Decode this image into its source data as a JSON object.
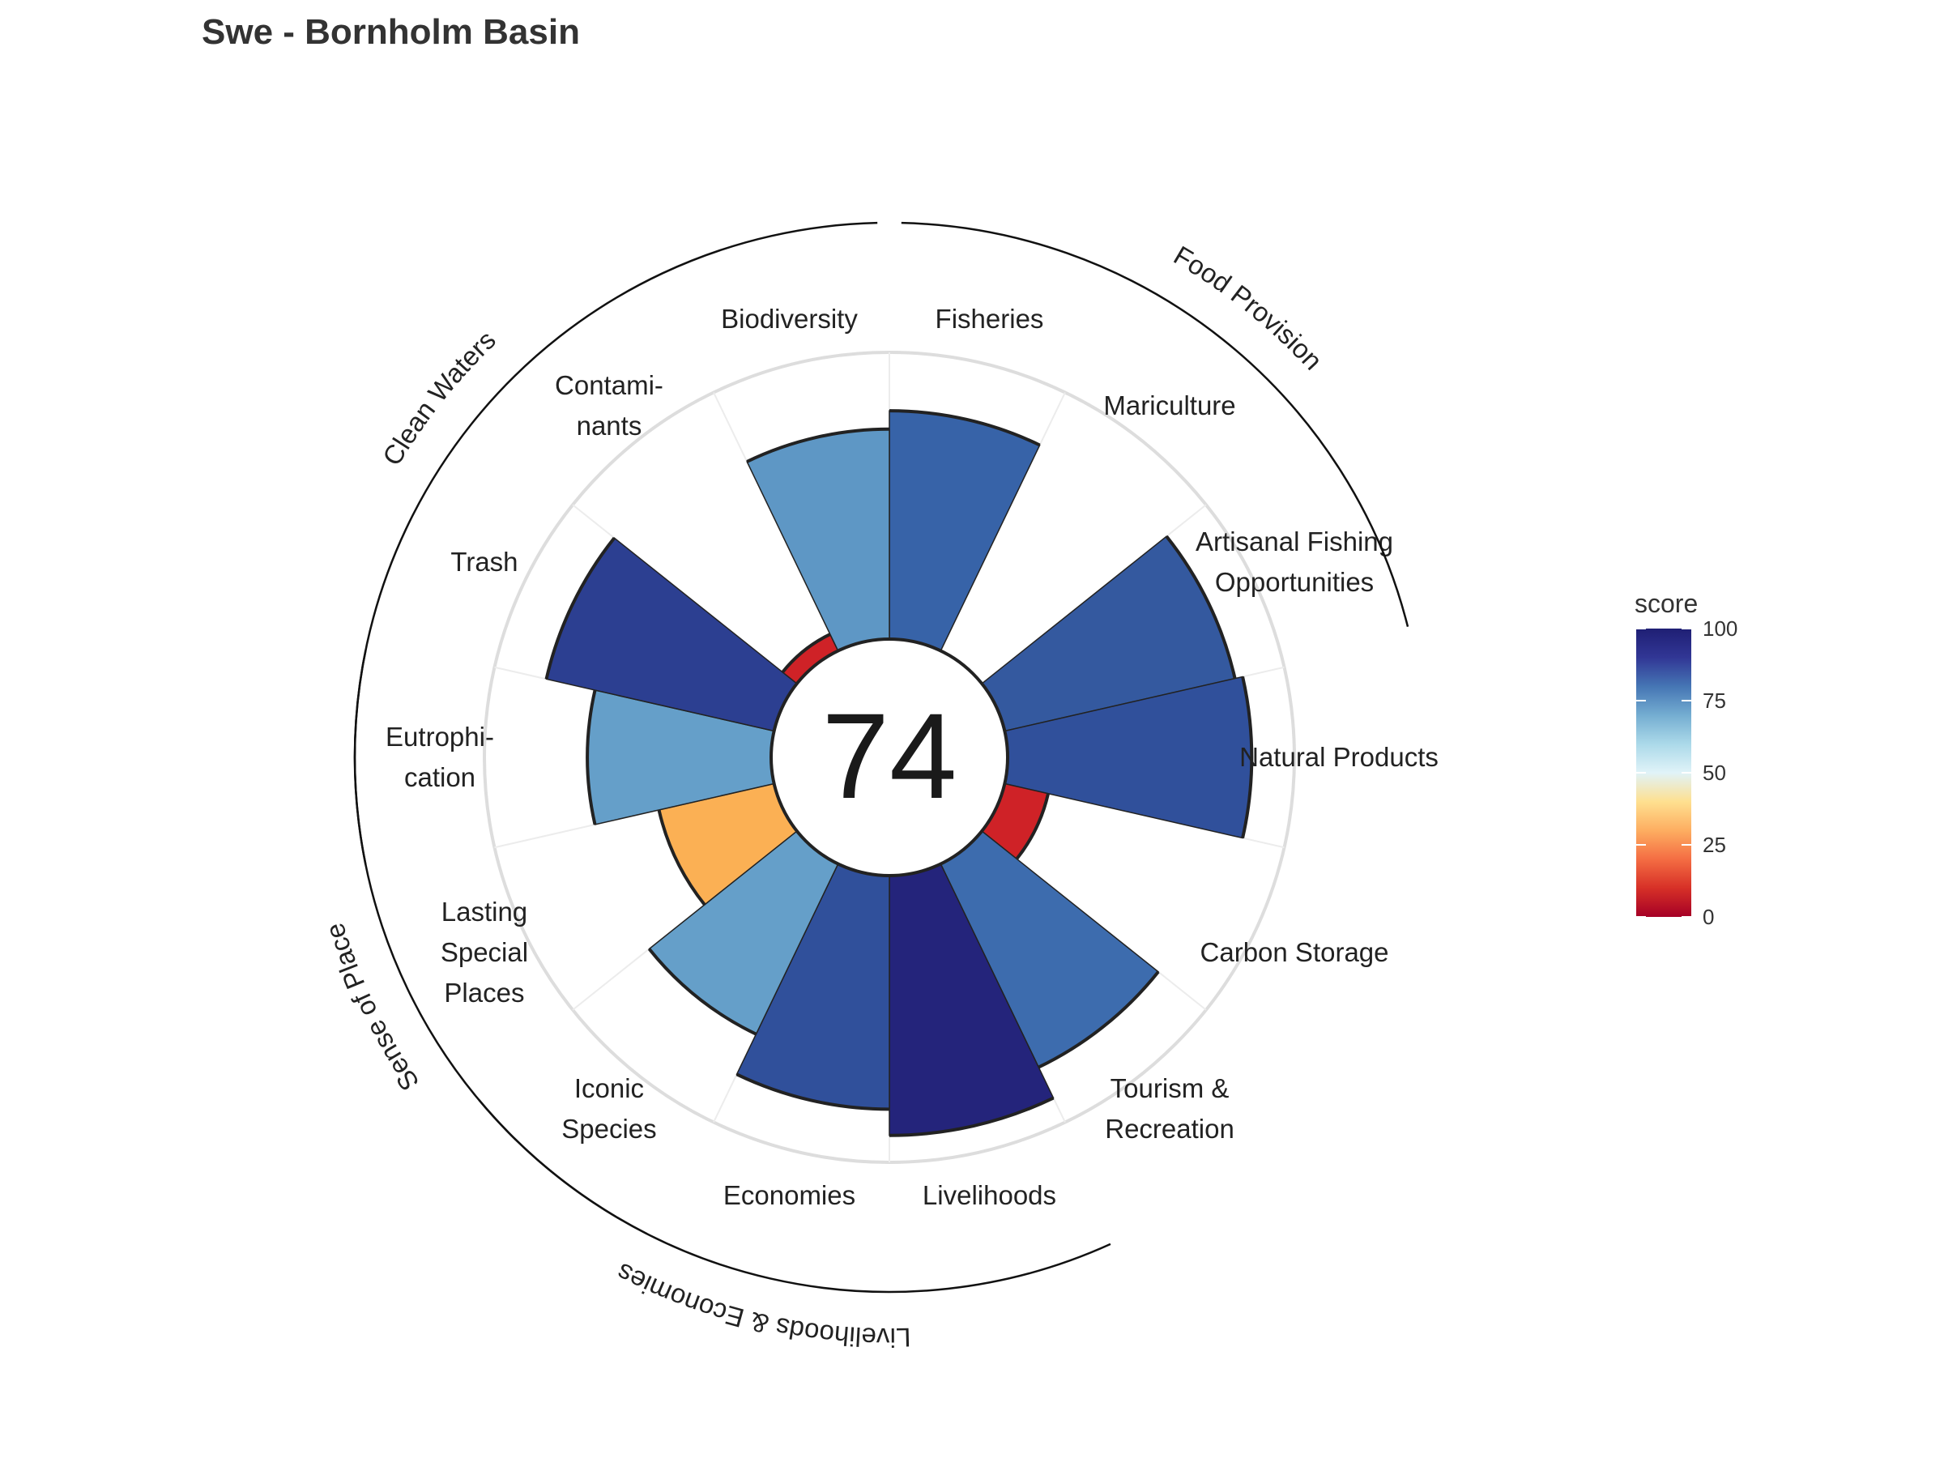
{
  "chart_data": {
    "type": "polar-bar",
    "title": "Swe - Bornholm Basin",
    "overall_score": "74",
    "rlim": [
      0,
      100
    ],
    "goals": [
      {
        "name": "Fisheries",
        "label": [
          "Fisheries"
        ],
        "score": 87,
        "color": "#3763a8"
      },
      {
        "name": "Mariculture",
        "label": [
          "Mariculture"
        ],
        "score": null,
        "color": null
      },
      {
        "name": "Artisanal Fishing Opportunities",
        "label": [
          "Artisanal Fishing",
          "Opportunities"
        ],
        "score": 90,
        "color": "#34599f"
      },
      {
        "name": "Natural Products",
        "label": [
          "Natural Products"
        ],
        "score": 93,
        "color": "#30509b"
      },
      {
        "name": "Carbon Storage",
        "label": [
          "Carbon Storage"
        ],
        "score": 17,
        "color": "#cf2227"
      },
      {
        "name": "Tourism & Recreation",
        "label": [
          "Tourism &",
          "Recreation"
        ],
        "score": 86,
        "color": "#3d6cae"
      },
      {
        "name": "Livelihoods",
        "label": [
          "Livelihoods"
        ],
        "score": 99,
        "color": "#24247b"
      },
      {
        "name": "Economies",
        "label": [
          "Economies"
        ],
        "score": 89,
        "color": "#30509b"
      },
      {
        "name": "Iconic Species",
        "label": [
          "Iconic",
          "Species"
        ],
        "score": 72,
        "color": "#659fc9"
      },
      {
        "name": "Lasting Special Places",
        "label": [
          "Lasting",
          "Special",
          "Places"
        ],
        "score": 45,
        "color": "#fbb054"
      },
      {
        "name": "Eutrophication",
        "label": [
          "Eutrophi-",
          "cation"
        ],
        "score": 70,
        "color": "#659fc9"
      },
      {
        "name": "Trash",
        "label": [
          "Trash"
        ],
        "score": 89,
        "color": "#2c3f91"
      },
      {
        "name": "Contaminants",
        "label": [
          "Contami-",
          "nants"
        ],
        "score": 7,
        "color": "#cf2227"
      },
      {
        "name": "Biodiversity",
        "label": [
          "Biodiversity"
        ],
        "score": 80,
        "color": "#5e97c5"
      }
    ],
    "groups": [
      {
        "name": "Food Provision",
        "from": 0,
        "to": 2
      },
      {
        "name": "Livelihoods & Economies",
        "from": 6,
        "to": 8
      },
      {
        "name": "Sense of Place",
        "from": 8,
        "to": 10
      },
      {
        "name": "Clean Waters",
        "from": 10,
        "to": 13
      }
    ],
    "legend": {
      "title": "score",
      "ticks": [
        "100",
        "75",
        "50",
        "25",
        "0"
      ],
      "range": [
        0,
        100
      ],
      "colors": [
        "#a50026",
        "#d73027",
        "#f46d43",
        "#fdae61",
        "#fee090",
        "#e0f3f8",
        "#abd9e9",
        "#74add1",
        "#4575b4",
        "#313695",
        "#1f1f74"
      ],
      "placement": "right"
    }
  }
}
